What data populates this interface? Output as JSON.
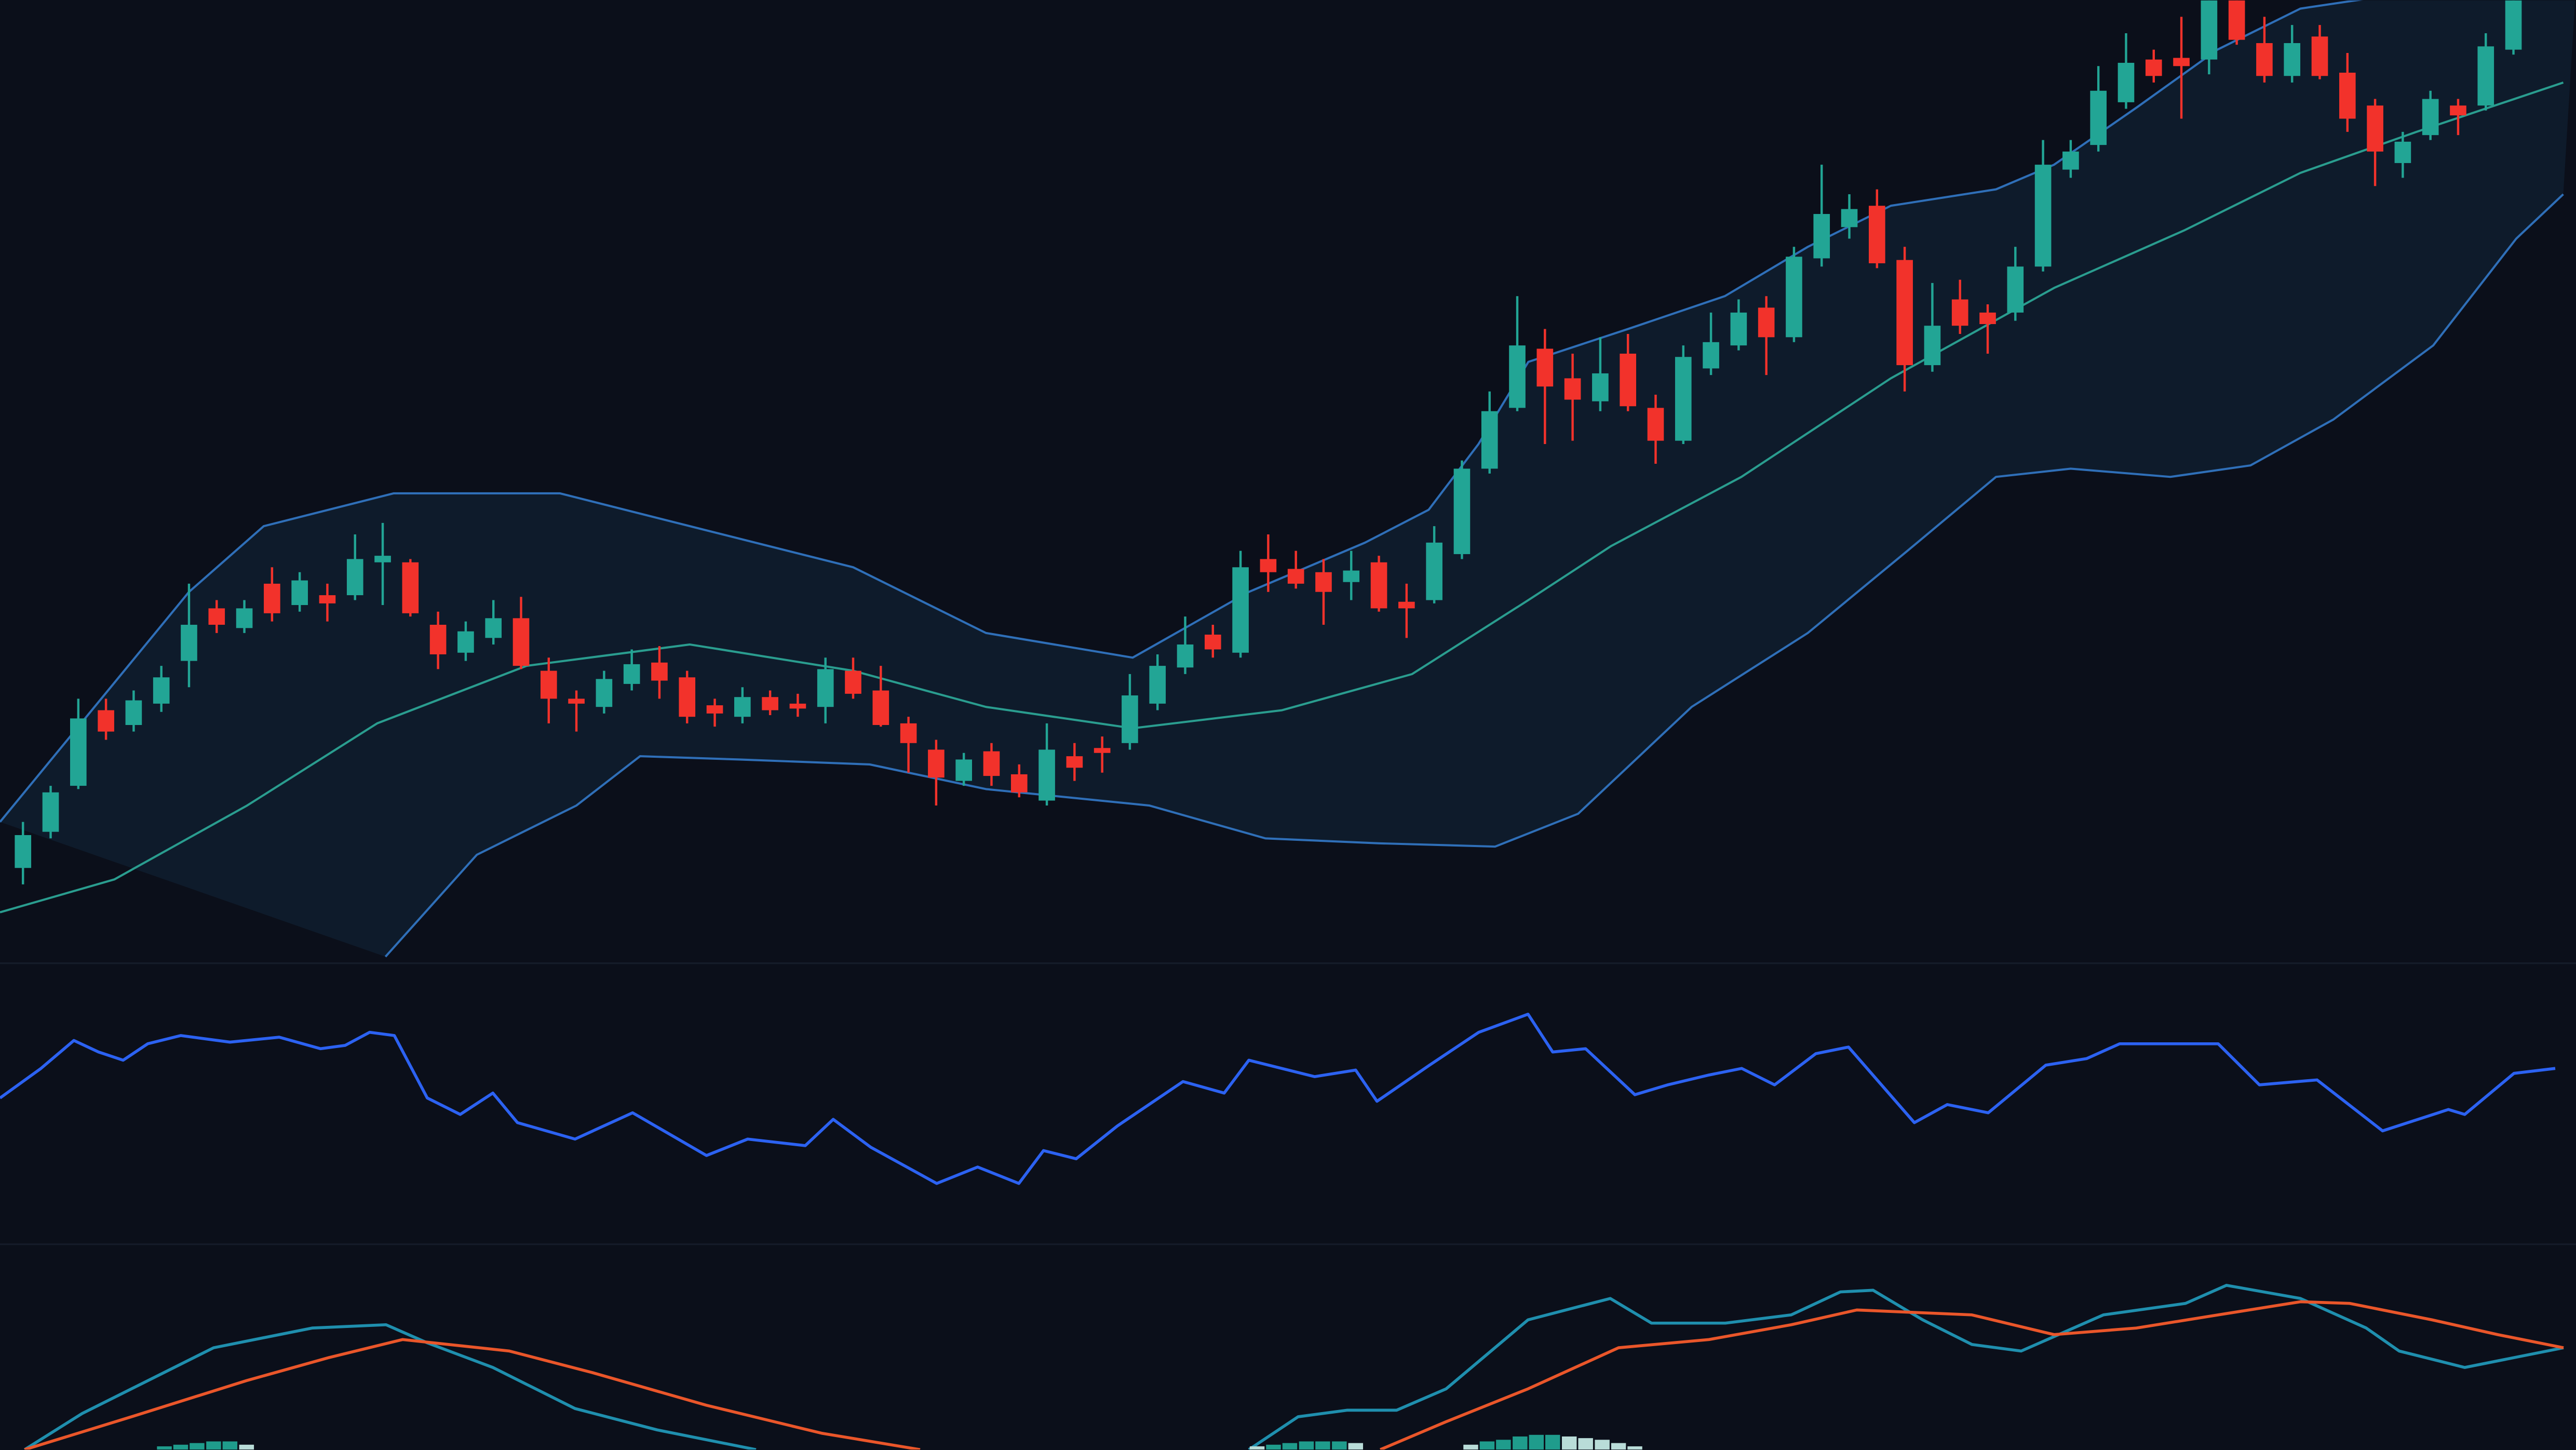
{
  "chart_data": [
    {
      "type": "candlestick",
      "categories": [
        null,
        null,
        null,
        null,
        null,
        null,
        null,
        null,
        null,
        null,
        null,
        null,
        null,
        null,
        null,
        null,
        null,
        null,
        null,
        null,
        null,
        null,
        null,
        null,
        null,
        null,
        null,
        null,
        null,
        null,
        null,
        null,
        null,
        null,
        null,
        null,
        null,
        null,
        null,
        null,
        null,
        null,
        null,
        null,
        null,
        null,
        null,
        null,
        null,
        null,
        null,
        null,
        null,
        null,
        null,
        null,
        null,
        null,
        null,
        null,
        null,
        null,
        null,
        null,
        null,
        null,
        null,
        null,
        null,
        null,
        null,
        null,
        null,
        null,
        null,
        null,
        null,
        null,
        null,
        null,
        null,
        null,
        null,
        null,
        null,
        null,
        null,
        null,
        null,
        null,
        null
      ],
      "open": [
        72,
        94,
        122,
        168,
        159,
        172,
        198,
        230,
        218,
        245,
        232,
        238,
        238,
        258,
        258,
        220,
        203,
        212,
        224,
        192,
        175,
        170,
        184,
        197,
        188,
        171,
        164,
        176,
        172,
        170,
        192,
        180,
        160,
        144,
        125,
        143,
        129,
        113,
        140,
        145,
        148,
        172,
        194,
        214,
        203,
        260,
        254,
        252,
        246,
        258,
        234,
        235,
        263,
        315,
        352,
        388,
        370,
        356,
        385,
        352,
        332,
        376,
        390,
        413,
        395,
        443,
        462,
        475,
        442,
        378,
        418,
        410,
        410,
        438,
        497,
        512,
        538,
        564,
        565,
        564,
        600,
        574,
        554,
        578,
        556,
        536,
        501,
        518,
        536,
        536,
        570
      ],
      "high": [
        100,
        122,
        175,
        175,
        180,
        195,
        245,
        235,
        235,
        255,
        252,
        245,
        275,
        282,
        260,
        228,
        222,
        235,
        237,
        200,
        180,
        192,
        205,
        207,
        192,
        175,
        182,
        180,
        178,
        200,
        200,
        195,
        164,
        150,
        142,
        148,
        135,
        160,
        148,
        152,
        190,
        202,
        225,
        220,
        265,
        275,
        265,
        260,
        265,
        262,
        245,
        280,
        320,
        362,
        420,
        400,
        385,
        395,
        397,
        360,
        390,
        410,
        418,
        420,
        450,
        500,
        482,
        485,
        450,
        428,
        430,
        415,
        450,
        515,
        515,
        560,
        580,
        570,
        590,
        600,
        600,
        590,
        585,
        585,
        568,
        540,
        520,
        545,
        540,
        580,
        600
      ],
      "low": [
        62,
        90,
        120,
        150,
        155,
        167,
        182,
        215,
        215,
        222,
        228,
        222,
        235,
        232,
        225,
        193,
        198,
        208,
        193,
        160,
        155,
        166,
        180,
        175,
        160,
        158,
        160,
        165,
        164,
        160,
        175,
        158,
        130,
        110,
        122,
        122,
        115,
        110,
        125,
        130,
        144,
        168,
        190,
        200,
        200,
        240,
        242,
        220,
        235,
        228,
        212,
        233,
        260,
        312,
        350,
        330,
        332,
        350,
        350,
        318,
        330,
        372,
        387,
        372,
        392,
        438,
        455,
        437,
        362,
        374,
        397,
        385,
        405,
        435,
        492,
        508,
        534,
        550,
        528,
        555,
        573,
        550,
        550,
        552,
        520,
        487,
        492,
        515,
        518,
        533,
        567
      ],
      "close": [
        92,
        118,
        163,
        155,
        174,
        188,
        220,
        220,
        230,
        227,
        247,
        233,
        260,
        262,
        227,
        202,
        216,
        224,
        195,
        175,
        172,
        187,
        196,
        186,
        164,
        166,
        176,
        168,
        169,
        193,
        178,
        159,
        148,
        127,
        138,
        128,
        118,
        144,
        133,
        142,
        177,
        195,
        208,
        205,
        255,
        252,
        245,
        240,
        253,
        230,
        230,
        270,
        315,
        350,
        390,
        365,
        357,
        373,
        353,
        332,
        383,
        392,
        410,
        395,
        444,
        470,
        473,
        440,
        378,
        402,
        402,
        403,
        438,
        500,
        508,
        545,
        562,
        554,
        560,
        600,
        576,
        554,
        574,
        554,
        528,
        508,
        514,
        540,
        530,
        572,
        600
      ],
      "up_color": "#22a595",
      "down_color": "#f2322b",
      "xlim": [
        -0.83,
        92.26
      ],
      "ylim": [
        15,
        600
      ],
      "band_fill": "#0e1b2b",
      "series": [
        {
          "color": "#2f6fb8",
          "x": [
            -0.83,
            6,
            8.7,
            13.4,
            19.4,
            24.1,
            30,
            34.8,
            40.1,
            44.3,
            48.5,
            50.8,
            52.6,
            54.4,
            58,
            61.5,
            64.5,
            67.5,
            71.3,
            73.4,
            76.4,
            79.3,
            82.3,
            92.3
          ],
          "values": [
            100,
            240,
            280,
            300,
            300,
            280,
            255,
            215,
            200,
            240,
            270,
            290,
            330,
            380,
            400,
            420,
            450,
            475,
            485,
            500,
            535,
            570,
            595,
            620
          ]
        },
        {
          "color": "#2a9d8f",
          "x": [
            -0.83,
            3.3,
            8.1,
            12.8,
            18.2,
            24.1,
            30,
            34.8,
            40.1,
            45.5,
            50.2,
            54.4,
            57.4,
            62.1,
            67.5,
            73.4,
            78.1,
            82.3,
            86.5,
            91.8
          ],
          "values": [
            45,
            65,
            110,
            160,
            195,
            208,
            192,
            170,
            157,
            168,
            190,
            235,
            268,
            310,
            370,
            425,
            460,
            495,
            520,
            550
          ]
        },
        {
          "color": "#2f6fb8",
          "x": [
            13.1,
            16.4,
            20,
            22.3,
            25.9,
            30.6,
            34.8,
            40.7,
            44.9,
            49,
            53.2,
            56.2,
            60.3,
            64.5,
            68.1,
            71.3,
            74,
            77.6,
            80.5,
            83.5,
            87.1,
            90.1,
            91.8
          ],
          "values": [
            18,
            80,
            110,
            140,
            138,
            135,
            120,
            110,
            90,
            87,
            85,
            105,
            170,
            215,
            265,
            310,
            315,
            310,
            317,
            345,
            390,
            455,
            482
          ]
        }
      ]
    },
    {
      "type": "line",
      "xlim": [
        -0.83,
        92.26
      ],
      "ylim": [
        0,
        170
      ],
      "series": [
        {
          "color": "#2c62f2",
          "x": [
            -0.83,
            0.65,
            1.84,
            2.73,
            3.62,
            4.51,
            5.7,
            7.48,
            9.26,
            10.75,
            11.64,
            12.53,
            13.42,
            14.61,
            15.8,
            16.98,
            17.87,
            19.95,
            22.03,
            24.7,
            26.19,
            28.27,
            29.28,
            30.64,
            33.02,
            34.5,
            35.99,
            36.88,
            38.06,
            39.55,
            41.92,
            43.41,
            44.3,
            46.68,
            48.16,
            48.93,
            50.83,
            52.61,
            54.39,
            55.28,
            56.47,
            58.25,
            59.44,
            60.93,
            62.11,
            63.3,
            64.79,
            65.97,
            68.35,
            69.54,
            71.02,
            73.1,
            74.58,
            75.77,
            79.33,
            80.82,
            82.9,
            85.27,
            87.65,
            88.24,
            90.02,
            91.51
          ],
          "values": [
            92,
            110,
            127,
            120,
            115,
            125,
            130,
            126,
            129,
            122,
            124,
            132,
            130,
            92,
            82,
            95,
            77,
            67,
            83,
            57,
            67,
            63,
            79,
            62,
            40,
            50,
            40,
            60,
            55,
            75,
            102,
            95,
            115,
            105,
            109,
            90,
            112,
            132,
            143,
            120,
            122,
            94,
            100,
            106,
            110,
            100,
            119,
            123,
            77,
            88,
            83,
            112,
            116,
            125,
            125,
            100,
            103,
            72,
            85,
            82,
            107,
            110
          ]
        }
      ]
    },
    {
      "type": "line",
      "xlim": [
        -0.83,
        92.26
      ],
      "ylim": [
        0,
        125
      ],
      "series": [
        {
          "color": "#1f8fae",
          "x": [
            0.06,
            2.14,
            5.11,
            6.89,
            10.45,
            13.12,
            14.61,
            16.98,
            19.95,
            22.92,
            26.49,
            35.3,
            44.3,
            46.08,
            47.86,
            49.64,
            51.43,
            54.39,
            57.36,
            58.85,
            61.52,
            63.9,
            65.68,
            66.86,
            68.65,
            70.43,
            72.21,
            75.18,
            78.15,
            79.63,
            82.3,
            84.68,
            85.87,
            88.24,
            91.81
          ],
          "values": [
            0,
            22,
            47,
            62,
            74,
            76,
            65,
            50,
            25,
            12,
            0,
            null,
            0,
            20,
            24,
            24,
            37,
            79,
            92,
            77,
            77,
            82,
            96,
            97,
            79,
            64,
            60,
            82,
            89,
            100,
            92,
            74,
            60,
            50,
            62
          ]
        },
        {
          "color": "#ea562a",
          "x": [
            0.06,
            3.92,
            8.08,
            11.05,
            13.72,
            17.58,
            20.55,
            24.7,
            28.86,
            32.42,
            40.7,
            49.05,
            51.43,
            54.39,
            57.66,
            60.93,
            63.9,
            66.27,
            70.43,
            73.4,
            76.37,
            79.33,
            82.3,
            84.08,
            87.05,
            89.43,
            91.81
          ],
          "values": [
            0,
            20,
            42,
            56,
            67,
            60,
            47,
            27,
            10,
            0,
            null,
            0,
            17,
            37,
            62,
            67,
            76,
            85,
            82,
            70,
            74,
            82,
            90,
            89,
            79,
            70,
            62
          ]
        },
        {
          "type": "bar",
          "color": "#1f9c8c",
          "fade_color": "#b9dcd8",
          "x": [
            5.11,
            5.7,
            6.29,
            6.89,
            7.48,
            8.08,
            44.6,
            45.19,
            45.78,
            46.38,
            46.97,
            47.57,
            48.16,
            52.32,
            52.91,
            53.5,
            54.1,
            54.69,
            55.28,
            55.88,
            56.47,
            57.07,
            57.66,
            58.25
          ],
          "values": [
            2,
            3,
            4,
            5,
            5,
            3,
            2,
            3,
            4,
            5,
            5,
            5,
            4,
            3,
            5,
            6,
            8,
            9,
            9,
            8,
            7,
            6,
            4,
            2
          ]
        }
      ]
    }
  ]
}
